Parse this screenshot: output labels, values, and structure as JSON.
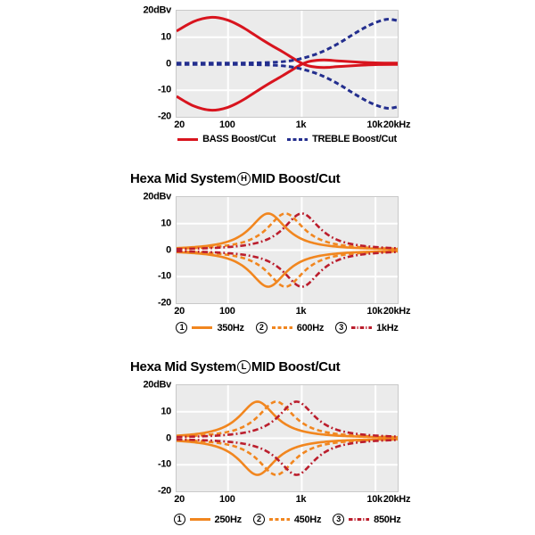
{
  "page": {
    "background": "#ffffff",
    "text_color": "#000000"
  },
  "styles": {
    "plot_bg": "#ebebeb",
    "grid_color": "#ffffff",
    "plot_border": "#c9c9c9",
    "red": "#d8141e",
    "navy": "#232e8e",
    "orange": "#f1861f",
    "maroon": "#bb1e2d"
  },
  "chart_data": [
    {
      "type": "line",
      "xscale": "log",
      "xlim": [
        20,
        20000
      ],
      "ylim": [
        -20,
        20
      ],
      "ylabel": "dBv",
      "x_ticks": [
        {
          "f": 20,
          "label": "20"
        },
        {
          "f": 100,
          "label": "100"
        },
        {
          "f": 1000,
          "label": "1k"
        },
        {
          "f": 10000,
          "label": "10k"
        },
        {
          "f": 20000,
          "label": "20kHz"
        }
      ],
      "y_ticks": [
        {
          "v": 20,
          "label": "20dBv"
        },
        {
          "v": 10,
          "label": "10"
        },
        {
          "v": 0,
          "label": "0"
        },
        {
          "v": -10,
          "label": "-10"
        },
        {
          "v": -20,
          "label": "-20"
        }
      ],
      "grid": {
        "x": [
          100,
          1000,
          10000
        ],
        "y": [
          10,
          0,
          -10
        ]
      },
      "series": [
        {
          "name": "BASS Boost/Cut",
          "color": "#d8141e",
          "line": "solid",
          "width": 3,
          "mirror": true,
          "points": [
            [
              20,
              12.3
            ],
            [
              26,
              14.2
            ],
            [
              34,
              15.9
            ],
            [
              45,
              17.0
            ],
            [
              58,
              17.5
            ],
            [
              75,
              17.3
            ],
            [
              100,
              16.4
            ],
            [
              130,
              15.0
            ],
            [
              170,
              13.2
            ],
            [
              220,
              11.2
            ],
            [
              300,
              8.8
            ],
            [
              400,
              6.7
            ],
            [
              550,
              4.5
            ],
            [
              750,
              2.2
            ],
            [
              950,
              0.5
            ],
            [
              1200,
              -0.7
            ],
            [
              1600,
              -1.3
            ],
            [
              2200,
              -1.4
            ],
            [
              3000,
              -1.1
            ],
            [
              4500,
              -0.8
            ],
            [
              7000,
              -0.5
            ],
            [
              11000,
              -0.3
            ],
            [
              20000,
              -0.25
            ]
          ]
        },
        {
          "name": "TREBLE Boost/Cut",
          "color": "#232e8e",
          "line": "dashed",
          "width": 3,
          "mirror": true,
          "points": [
            [
              20,
              0.25
            ],
            [
              100,
              0.25
            ],
            [
              200,
              0.3
            ],
            [
              300,
              0.4
            ],
            [
              450,
              0.6
            ],
            [
              650,
              1.0
            ],
            [
              900,
              1.7
            ],
            [
              1200,
              2.6
            ],
            [
              1700,
              4.0
            ],
            [
              2400,
              5.9
            ],
            [
              3400,
              8.2
            ],
            [
              4800,
              10.8
            ],
            [
              6800,
              13.3
            ],
            [
              9000,
              15.0
            ],
            [
              12000,
              16.3
            ],
            [
              15000,
              16.8
            ],
            [
              18000,
              16.5
            ],
            [
              20000,
              16.2
            ]
          ]
        }
      ],
      "legend": [
        {
          "label": "BASS Boost/Cut",
          "color": "#d8141e",
          "line": "solid"
        },
        {
          "label": "TREBLE Boost/Cut",
          "color": "#232e8e",
          "line": "dashed"
        }
      ]
    },
    {
      "type": "line",
      "xscale": "log",
      "xlim": [
        20,
        20000
      ],
      "ylim": [
        -20,
        20
      ],
      "ylabel": "dBv",
      "title": {
        "pre": "Hexa Mid System",
        "circle": "H",
        "post": "MID Boost/Cut"
      },
      "x_ticks": [
        {
          "f": 20,
          "label": "20"
        },
        {
          "f": 100,
          "label": "100"
        },
        {
          "f": 1000,
          "label": "1k"
        },
        {
          "f": 10000,
          "label": "10k"
        },
        {
          "f": 20000,
          "label": "20kHz"
        }
      ],
      "y_ticks": [
        {
          "v": 20,
          "label": "20dBv"
        },
        {
          "v": 10,
          "label": "10"
        },
        {
          "v": 0,
          "label": "0"
        },
        {
          "v": -10,
          "label": "-10"
        },
        {
          "v": -20,
          "label": "-20"
        }
      ],
      "grid": {
        "x": [
          100,
          1000,
          10000
        ],
        "y": [
          10,
          0,
          -10
        ]
      },
      "series": [
        {
          "name": "350Hz",
          "color": "#f1861f",
          "line": "solid",
          "width": 2.6,
          "mirror": true,
          "bell": {
            "f0": 350,
            "gain": 13.8,
            "width_oct": 1.0
          }
        },
        {
          "name": "600Hz",
          "color": "#f1861f",
          "line": "dashed",
          "width": 2.6,
          "mirror": true,
          "bell": {
            "f0": 600,
            "gain": 13.8,
            "width_oct": 1.0
          }
        },
        {
          "name": "1kHz",
          "color": "#bb1e2d",
          "line": "dashdot",
          "width": 2.6,
          "mirror": true,
          "bell": {
            "f0": 1000,
            "gain": 13.8,
            "width_oct": 1.0
          }
        }
      ],
      "legend": [
        {
          "num": "1",
          "label": "350Hz",
          "color": "#f1861f",
          "line": "solid"
        },
        {
          "num": "2",
          "label": "600Hz",
          "color": "#f1861f",
          "line": "dashed"
        },
        {
          "num": "3",
          "label": "1kHz",
          "color": "#bb1e2d",
          "line": "dashdot"
        }
      ]
    },
    {
      "type": "line",
      "xscale": "log",
      "xlim": [
        20,
        20000
      ],
      "ylim": [
        -20,
        20
      ],
      "ylabel": "dBv",
      "title": {
        "pre": "Hexa Mid System",
        "circle": "L",
        "post": "MID Boost/Cut"
      },
      "x_ticks": [
        {
          "f": 20,
          "label": "20"
        },
        {
          "f": 100,
          "label": "100"
        },
        {
          "f": 1000,
          "label": "1k"
        },
        {
          "f": 10000,
          "label": "10k"
        },
        {
          "f": 20000,
          "label": "20kHz"
        }
      ],
      "y_ticks": [
        {
          "v": 20,
          "label": "20dBv"
        },
        {
          "v": 10,
          "label": "10"
        },
        {
          "v": 0,
          "label": "0"
        },
        {
          "v": -10,
          "label": "-10"
        },
        {
          "v": -20,
          "label": "-20"
        }
      ],
      "grid": {
        "x": [
          100,
          1000,
          10000
        ],
        "y": [
          10,
          0,
          -10
        ]
      },
      "series": [
        {
          "name": "250Hz",
          "color": "#f1861f",
          "line": "solid",
          "width": 2.6,
          "mirror": true,
          "bell": {
            "f0": 250,
            "gain": 13.8,
            "width_oct": 1.0
          }
        },
        {
          "name": "450Hz",
          "color": "#f1861f",
          "line": "dashed",
          "width": 2.6,
          "mirror": true,
          "bell": {
            "f0": 450,
            "gain": 13.8,
            "width_oct": 1.0
          }
        },
        {
          "name": "850Hz",
          "color": "#bb1e2d",
          "line": "dashdot",
          "width": 2.6,
          "mirror": true,
          "bell": {
            "f0": 850,
            "gain": 13.8,
            "width_oct": 1.0
          }
        }
      ],
      "legend": [
        {
          "num": "1",
          "label": "250Hz",
          "color": "#f1861f",
          "line": "solid"
        },
        {
          "num": "2",
          "label": "450Hz",
          "color": "#f1861f",
          "line": "dashed"
        },
        {
          "num": "3",
          "label": "850Hz",
          "color": "#bb1e2d",
          "line": "dashdot"
        }
      ]
    }
  ]
}
